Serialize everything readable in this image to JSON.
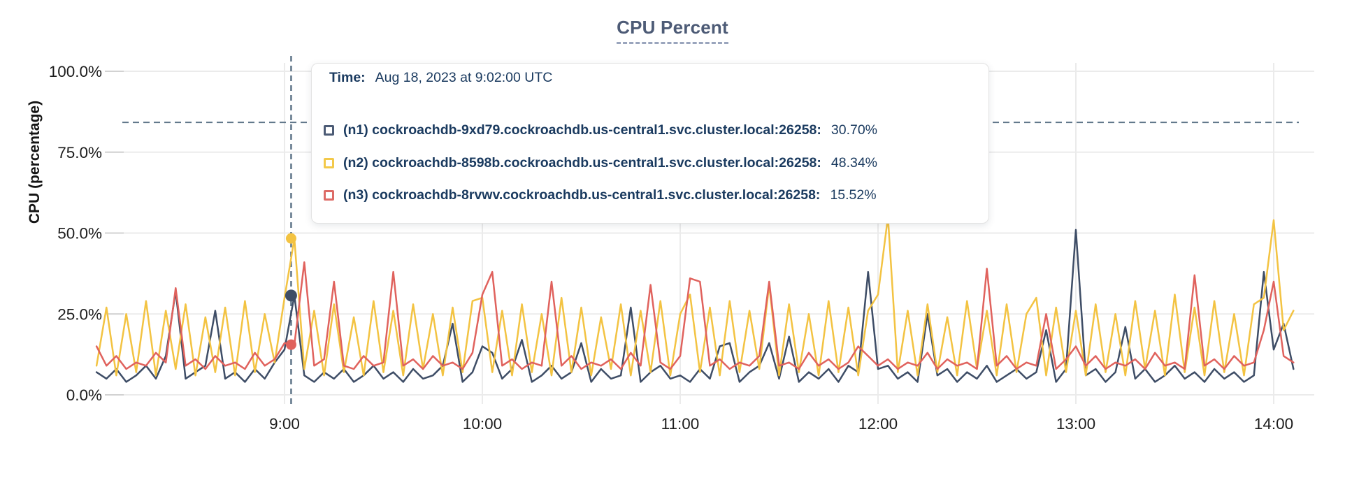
{
  "title": "CPU Percent",
  "y_axis_title": "CPU (percentage)",
  "tooltip": {
    "time_label": "Time:",
    "time_value": "Aug 18, 2023 at 9:02:00 UTC",
    "rows": [
      {
        "label": "(n1) cockroachdb-9xd79.cockroachdb.us-central1.svc.cluster.local:26258:",
        "value": "30.70%",
        "swatch_color": "#4c5b75"
      },
      {
        "label": "(n2) cockroachdb-8598b.cockroachdb.us-central1.svc.cluster.local:26258:",
        "value": "48.34%",
        "swatch_color": "#f3c94a"
      },
      {
        "label": "(n3) cockroachdb-8rvwv.cockroachdb.us-central1.svc.cluster.local:26258:",
        "value": "15.52%",
        "swatch_color": "#dd6b66"
      }
    ]
  },
  "colors": {
    "grid": "#ebebeb",
    "tick": "#d2d2d2",
    "dashed_guides": "#5f7589",
    "axis_text": "#1c1c1c",
    "title_text": "#4d5b76",
    "tooltip_text": "#1a3a5f"
  },
  "chart_data": {
    "type": "line",
    "title": "CPU Percent",
    "xlabel": "",
    "ylabel": "CPU (percentage)",
    "ylim": [
      0,
      100
    ],
    "grid": true,
    "legend_position": "tooltip-overlay",
    "yticks": [
      {
        "pct": 100,
        "label": "100.0%"
      },
      {
        "pct": 75,
        "label": "75.0%"
      },
      {
        "pct": 50,
        "label": "50.0%"
      },
      {
        "pct": 25,
        "label": "25.0%"
      },
      {
        "pct": 0,
        "label": "0.0%"
      }
    ],
    "xticks": [
      {
        "min": 540,
        "label": "9:00"
      },
      {
        "min": 600,
        "label": "10:00"
      },
      {
        "min": 660,
        "label": "11:00"
      },
      {
        "min": 720,
        "label": "12:00"
      },
      {
        "min": 780,
        "label": "13:00"
      },
      {
        "min": 840,
        "label": "14:00"
      }
    ],
    "hline_pct": 84.2,
    "hover": {
      "time_label": "Aug 18, 2023 at 9:02:00 UTC",
      "time_min": 542,
      "points": [
        {
          "series": 0,
          "value": 30.7
        },
        {
          "series": 1,
          "value": 48.34
        },
        {
          "series": 2,
          "value": 15.52
        }
      ]
    },
    "x_start_min": 483,
    "x_step_min": 3,
    "series": [
      {
        "name": "(n1) cockroachdb-9xd79.cockroachdb.us-central1.svc.cluster.local:26258",
        "color": "#3e4d66",
        "values": [
          7,
          5,
          8,
          4,
          6,
          9,
          5,
          12,
          32,
          5,
          7,
          9,
          26,
          5,
          7,
          4,
          8,
          5,
          10,
          14,
          30.7,
          6,
          4,
          7,
          5,
          8,
          4,
          6,
          9,
          5,
          7,
          4,
          8,
          5,
          6,
          9,
          22,
          4,
          7,
          15,
          13,
          5,
          8,
          17,
          4,
          6,
          9,
          5,
          7,
          16,
          4,
          8,
          5,
          6,
          27,
          4,
          7,
          9,
          5,
          6,
          4,
          8,
          5,
          15,
          16,
          4,
          7,
          9,
          16,
          5,
          18,
          4,
          7,
          5,
          8,
          4,
          9,
          7,
          38,
          8,
          9,
          5,
          7,
          4,
          25,
          6,
          8,
          4,
          7,
          5,
          9,
          4,
          6,
          8,
          5,
          7,
          20,
          4,
          8,
          51,
          6,
          8,
          4,
          7,
          21,
          5,
          8,
          4,
          6,
          9,
          5,
          7,
          4,
          8,
          5,
          7,
          4,
          6,
          38,
          14,
          22,
          8
        ]
      },
      {
        "name": "(n2) cockroachdb-8598b.cockroachdb.us-central1.svc.cluster.local:26258",
        "color": "#f3c342",
        "values": [
          9,
          27,
          6,
          25,
          7,
          29,
          6,
          26,
          8,
          28,
          6,
          24,
          7,
          27,
          6,
          29,
          7,
          25,
          10,
          30,
          48.3,
          8,
          26,
          6,
          28,
          7,
          24,
          6,
          29,
          7,
          26,
          6,
          28,
          8,
          25,
          6,
          27,
          7,
          29,
          30,
          7,
          26,
          6,
          28,
          7,
          25,
          6,
          30,
          7,
          27,
          6,
          24,
          8,
          28,
          6,
          26,
          7,
          29,
          6,
          25,
          31,
          7,
          27,
          6,
          29,
          7,
          26,
          8,
          34,
          6,
          28,
          7,
          25,
          6,
          29,
          7,
          27,
          6,
          26,
          31,
          55,
          7,
          26,
          6,
          28,
          7,
          24,
          6,
          29,
          8,
          26,
          6,
          28,
          7,
          25,
          30,
          6,
          27,
          7,
          26,
          6,
          28,
          7,
          25,
          6,
          29,
          8,
          26,
          6,
          31,
          7,
          27,
          6,
          29,
          7,
          25,
          6,
          28,
          30,
          54,
          20,
          26
        ]
      },
      {
        "name": "(n3) cockroachdb-8rvwv.cockroachdb.us-central1.svc.cluster.local:26258",
        "color": "#e0625d",
        "values": [
          15,
          9,
          12,
          8,
          10,
          9,
          13,
          10,
          33,
          9,
          11,
          8,
          12,
          9,
          10,
          8,
          13,
          9,
          11,
          16,
          15.5,
          41,
          9,
          11,
          35,
          9,
          8,
          12,
          9,
          10,
          38,
          9,
          11,
          8,
          12,
          9,
          10,
          8,
          13,
          31,
          38,
          9,
          11,
          8,
          10,
          9,
          35,
          9,
          12,
          8,
          10,
          9,
          11,
          8,
          13,
          9,
          34,
          10,
          8,
          12,
          36,
          35,
          9,
          11,
          8,
          10,
          9,
          12,
          35,
          9,
          10,
          8,
          13,
          9,
          11,
          8,
          10,
          15,
          12,
          9,
          11,
          8,
          10,
          9,
          13,
          8,
          11,
          9,
          10,
          8,
          39,
          9,
          12,
          8,
          10,
          9,
          25,
          8,
          11,
          15,
          9,
          12,
          8,
          10,
          9,
          11,
          8,
          13,
          9,
          10,
          8,
          37,
          9,
          11,
          8,
          12,
          9,
          10,
          20,
          35,
          12,
          10
        ]
      }
    ]
  }
}
